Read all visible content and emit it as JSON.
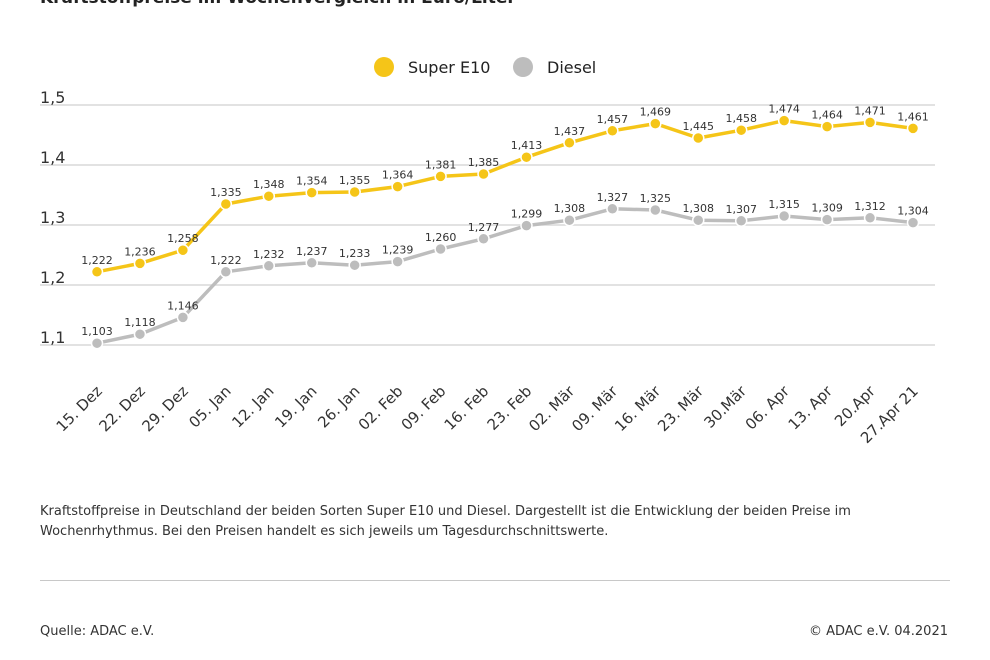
{
  "title": "Kraftstoffpreise im Wochenvergleich in Euro/Liter",
  "caption": "Kraftstoffpreise in Deutschland der beiden Sorten Super E10 und Diesel. Dargestellt ist die Entwicklung der beiden Preise im Wochenrhythmus. Bei den Preisen handelt es sich jeweils um Tagesdurchschnittswerte.",
  "source": "Quelle: ADAC e.V.",
  "copyright": "© ADAC e.V. 04.2021",
  "colors": {
    "super_e10": "#f5c518",
    "diesel": "#bdbdbd",
    "grid": "#d9d9d9"
  },
  "chart_data": {
    "type": "line",
    "categories": [
      "15. Dez",
      "22. Dez",
      "29. Dez",
      "05. Jan",
      "12. Jan",
      "19. Jan",
      "26. Jan",
      "02. Feb",
      "09. Feb",
      "16. Feb",
      "23. Feb",
      "02. Mär",
      "09. Mär",
      "16. Mär",
      "23. Mär",
      "30.Mär",
      "06. Apr",
      "13. Apr",
      "20.Apr",
      "27.Apr 21"
    ],
    "series": [
      {
        "name": "Super E10",
        "values": [
          1.222,
          1.236,
          1.258,
          1.335,
          1.348,
          1.354,
          1.355,
          1.364,
          1.381,
          1.385,
          1.413,
          1.437,
          1.457,
          1.469,
          1.445,
          1.458,
          1.474,
          1.464,
          1.471,
          1.461
        ],
        "labels": [
          "1,222",
          "1,236",
          "1,258",
          "1,335",
          "1,348",
          "1,354",
          "1,355",
          "1,364",
          "1,381",
          "1,385",
          "1,413",
          "1,437",
          "1,457",
          "1,469",
          "1,445",
          "1,458",
          "1,474",
          "1,464",
          "1,471",
          "1,461"
        ]
      },
      {
        "name": "Diesel",
        "values": [
          1.103,
          1.118,
          1.146,
          1.222,
          1.232,
          1.237,
          1.233,
          1.239,
          1.26,
          1.277,
          1.299,
          1.308,
          1.327,
          1.325,
          1.308,
          1.307,
          1.315,
          1.309,
          1.312,
          1.304
        ],
        "labels": [
          "1,103",
          "1,118",
          "1,146",
          "1,222",
          "1,232",
          "1,237",
          "1,233",
          "1,239",
          "1,260",
          "1,277",
          "1,299",
          "1,308",
          "1,327",
          "1,325",
          "1,308",
          "1,307",
          "1,315",
          "1,309",
          "1,312",
          "1,304"
        ]
      }
    ],
    "yticks": [
      1.1,
      1.2,
      1.3,
      1.4,
      1.5
    ],
    "ytick_labels": [
      "1,1",
      "1,2",
      "1,3",
      "1,4",
      "1,5"
    ],
    "ylim": [
      1.1,
      1.5
    ],
    "grid": true,
    "legend_position": "top-center"
  }
}
